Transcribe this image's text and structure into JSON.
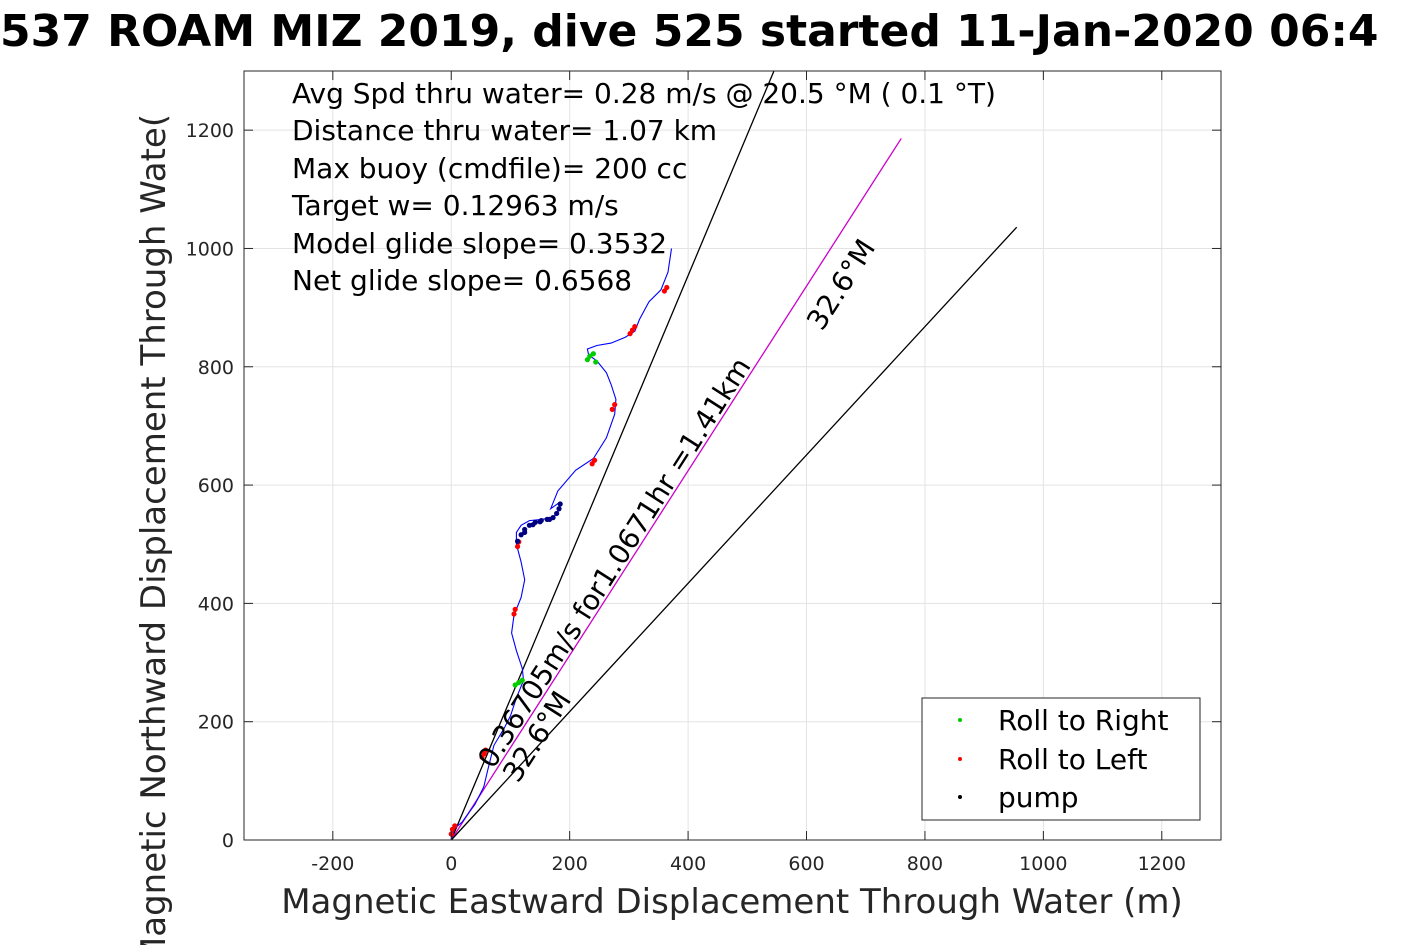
{
  "chart_data": {
    "type": "line",
    "title": "537 ROAM MIZ 2019, dive 525 started 11-Jan-2020 06:4",
    "xlabel": "Magnetic Eastward Displacement Through Water (m)",
    "ylabel": "Magnetic Northward Displacement Through Wate(",
    "xlim": [
      -350,
      1300
    ],
    "ylim": [
      0,
      1300
    ],
    "xticks": [
      -200,
      0,
      200,
      400,
      600,
      800,
      1000,
      1200
    ],
    "yticks": [
      0,
      200,
      400,
      600,
      800,
      1000,
      1200
    ],
    "grid": true,
    "legend_placement": "bottom-right",
    "stats": [
      "Avg Spd thru water=  0.28 m/s @  20.5 °M (  0.1 °T)",
      "Distance thru water=  1.07 km",
      "Max buoy (cmdfile)= 200 cc",
      "Target w= 0.12963 m/s",
      "Model glide slope= 0.3532",
      "Net glide slope= 0.6568"
    ],
    "annotations": {
      "speed_label": "0.36705m/s for1.0671hr =1.41km",
      "heading_label_far": "32.6°M",
      "heading_label_near": "32.6°M"
    },
    "reference_lines": [
      {
        "kind": "outer-left",
        "color": "#000000",
        "x": [
          0,
          545
        ],
        "y": [
          0,
          1300
        ]
      },
      {
        "kind": "current",
        "color": "#cc00cc",
        "x": [
          0,
          760
        ],
        "y": [
          0,
          1186
        ]
      },
      {
        "kind": "outer-right",
        "color": "#000000",
        "x": [
          0,
          955
        ],
        "y": [
          0,
          1036
        ]
      }
    ],
    "track": {
      "color": "#0000ff",
      "x": [
        0,
        2,
        6,
        18,
        40,
        55,
        62,
        72,
        90,
        100,
        110,
        122,
        120,
        110,
        102,
        106,
        118,
        124,
        118,
        110,
        110,
        118,
        132,
        152,
        172,
        184,
        182,
        168,
        180,
        210,
        240,
        262,
        276,
        278,
        270,
        262,
        246,
        232,
        230,
        246,
        270,
        294,
        310,
        318,
        334,
        354,
        366,
        372
      ],
      "y": [
        0,
        10,
        20,
        30,
        60,
        90,
        120,
        160,
        190,
        210,
        240,
        270,
        290,
        320,
        350,
        380,
        410,
        440,
        470,
        500,
        520,
        532,
        540,
        542,
        545,
        560,
        570,
        560,
        590,
        625,
        645,
        680,
        720,
        745,
        770,
        790,
        810,
        820,
        830,
        836,
        840,
        850,
        860,
        880,
        910,
        930,
        960,
        1000
      ]
    },
    "series": [
      {
        "name": "Roll to Right",
        "color": "#00cc00",
        "x": [
          230,
          234,
          240,
          244,
          108,
          114,
          120
        ],
        "y": [
          812,
          818,
          822,
          808,
          262,
          266,
          270
        ]
      },
      {
        "name": "Roll to Left",
        "color": "#ff0000",
        "x": [
          0,
          2,
          6,
          52,
          56,
          58,
          106,
          108,
          112,
          114,
          238,
          242,
          272,
          276,
          302,
          306,
          310,
          360,
          364
        ],
        "y": [
          10,
          18,
          24,
          140,
          146,
          152,
          382,
          390,
          496,
          504,
          636,
          642,
          728,
          736,
          856,
          862,
          868,
          928,
          934
        ]
      },
      {
        "name": "pump",
        "color": "#000080",
        "x": [
          112,
          118,
          124,
          132,
          142,
          152,
          162,
          172,
          178,
          182,
          184,
          124,
          138,
          150,
          166
        ],
        "y": [
          505,
          516,
          525,
          532,
          537,
          540,
          542,
          545,
          552,
          560,
          568,
          520,
          533,
          538,
          542
        ]
      }
    ]
  }
}
